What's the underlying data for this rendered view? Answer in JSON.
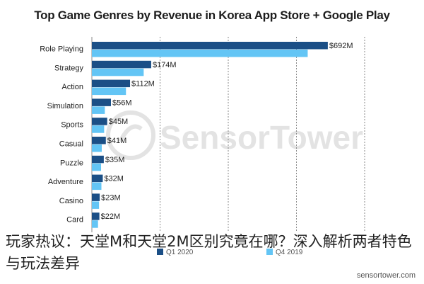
{
  "chart_data": {
    "type": "bar",
    "title": "Top Game Genres by Revenue in Korea App Store + Google Play",
    "categories": [
      "Role Playing",
      "Strategy",
      "Action",
      "Simulation",
      "Sports",
      "Casual",
      "Puzzle",
      "Adventure",
      "Casino",
      "Card"
    ],
    "series": [
      {
        "name": "Q1 2020",
        "values": [
          692,
          174,
          112,
          56,
          45,
          41,
          35,
          32,
          23,
          22
        ],
        "labels": [
          "$692M",
          "$174M",
          "$112M",
          "$56M",
          "$45M",
          "$41M",
          "$35M",
          "$32M",
          "$23M",
          "$22M"
        ]
      },
      {
        "name": "Q4 2019",
        "values": [
          633,
          152,
          100,
          38,
          36,
          29,
          27,
          28,
          21,
          18
        ]
      }
    ],
    "xlim": [
      0,
      800
    ],
    "grid": true,
    "legend_placement": "bottom",
    "colors": {
      "q1_2020": "#1b4f86",
      "q4_2019": "#63c5f5"
    }
  },
  "watermark": "SensorTower",
  "source": "sensortower.com",
  "caption": "玩家热议：天堂M和天堂2M区别究竟在哪？深入解析两者特色与玩法差异"
}
